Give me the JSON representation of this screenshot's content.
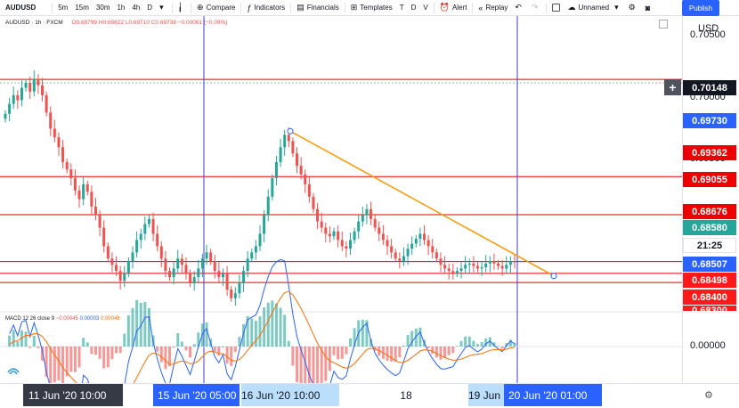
{
  "toolbar": {
    "symbol": "AUDUSD",
    "timeframes": [
      "5m",
      "15m",
      "30m",
      "1h",
      "4h",
      "D"
    ],
    "compare": "Compare",
    "indicators": "Indicators",
    "financials": "Financials",
    "templates": "Templates",
    "template_letters": [
      "T",
      "D",
      "V"
    ],
    "alert": "Alert",
    "replay": "Replay",
    "layout_name": "Unnamed",
    "publish": "Publish"
  },
  "legend": {
    "title": "AUDUSD · 1h · FXCM",
    "ohlc": "O0.69799 H0.69822 L0.69710 C0.69738 −0.00061 (−0.09%)"
  },
  "macd_legend": {
    "label": "MACD 12 26 close 9",
    "v1": "−0.00045",
    "v2": "0.00003",
    "v3": "0.00048"
  },
  "price_axis": {
    "currency": "USD",
    "ticks": [
      {
        "price": 0.705,
        "label": "0.70500"
      },
      {
        "price": 0.7,
        "label": "0.70000"
      },
      {
        "price": 0.695,
        "label": "0.69500"
      },
      {
        "price": 0.684,
        "label": "0.68400"
      }
    ],
    "macd_tick": "0.00000",
    "badges": [
      {
        "price": 0.70148,
        "label": "0.70148",
        "style": "dark"
      },
      {
        "price": 0.6973,
        "label": "0.69730",
        "style": "blue"
      },
      {
        "price": 0.69362,
        "label": "0.69362",
        "style": "red"
      },
      {
        "price": 0.69055,
        "label": "0.69055",
        "style": "red"
      },
      {
        "price": 0.68676,
        "label": "0.68676",
        "style": "red"
      },
      {
        "price": 0.6858,
        "label": "0.68580",
        "style": "teal"
      },
      {
        "price": 0.6854,
        "label": "21:25",
        "style": "outline"
      },
      {
        "price": 0.68507,
        "label": "0.68507",
        "style": "blue"
      },
      {
        "price": 0.68498,
        "label": "0.68498",
        "style": "red2"
      },
      {
        "price": 0.684,
        "label": "0.68400",
        "style": "red2"
      }
    ],
    "partial_bottom": "0.68300"
  },
  "chart_data": {
    "type": "candlestick",
    "symbol": "AUDUSD",
    "interval": "1h",
    "horizontal_levels": [
      0.70148,
      0.69362,
      0.69055,
      0.68676,
      0.6858,
      0.68507
    ],
    "trendline": {
      "from": 0.6973,
      "to": 0.6856
    },
    "vertical_lines": [
      "15 Jun '20 05:00",
      "20 Jun '20 01:00"
    ],
    "price_range": [
      0.6827,
      0.7066
    ],
    "closes": [
      0.6987,
      0.6995,
      0.7002,
      0.6998,
      0.7008,
      0.7012,
      0.7005,
      0.7015,
      0.701,
      0.7002,
      0.6988,
      0.6975,
      0.6968,
      0.696,
      0.6948,
      0.6942,
      0.6935,
      0.6925,
      0.6918,
      0.693,
      0.6924,
      0.6912,
      0.6905,
      0.6895,
      0.688,
      0.687,
      0.6865,
      0.686,
      0.6852,
      0.6858,
      0.6868,
      0.6875,
      0.6885,
      0.689,
      0.6898,
      0.6902,
      0.689,
      0.688,
      0.687,
      0.686,
      0.6855,
      0.6862,
      0.687,
      0.6865,
      0.6858,
      0.685,
      0.6855,
      0.6862,
      0.687,
      0.6875,
      0.6868,
      0.686,
      0.6855,
      0.6858,
      0.6845,
      0.6838,
      0.6842,
      0.685,
      0.686,
      0.687,
      0.6875,
      0.688,
      0.689,
      0.6905,
      0.692,
      0.6935,
      0.6948,
      0.696,
      0.697,
      0.6965,
      0.6955,
      0.6945,
      0.6938,
      0.693,
      0.692,
      0.691,
      0.69,
      0.6895,
      0.689,
      0.6888,
      0.6892,
      0.6885,
      0.688,
      0.6878,
      0.6885,
      0.6892,
      0.69,
      0.6905,
      0.691,
      0.6902,
      0.6895,
      0.689,
      0.6885,
      0.688,
      0.6875,
      0.687,
      0.6868,
      0.6872,
      0.6878,
      0.6882,
      0.6886,
      0.689,
      0.6885,
      0.688,
      0.6875,
      0.687,
      0.6865,
      0.6862,
      0.686,
      0.6858,
      0.686,
      0.6862,
      0.6865,
      0.6866,
      0.6864,
      0.6862,
      0.6863,
      0.6866,
      0.6868,
      0.6866,
      0.6864,
      0.6862,
      0.6865,
      0.6868,
      0.6867
    ]
  },
  "time_axis": {
    "labels": [
      {
        "text": "11 Jun '20   10:00",
        "style": "dark"
      },
      {
        "text": "15 Jun '20  05:00",
        "style": "blue"
      },
      {
        "text": "16 Jun '20   10:00",
        "style": "light"
      },
      {
        "text": "18",
        "style": "plain"
      },
      {
        "text": "19 Jun '20",
        "style": "light"
      },
      {
        "text": "20 Jun '20   01:00",
        "style": "blue"
      }
    ]
  },
  "colors": {
    "up": "#26a69a",
    "down": "#ef5350",
    "level": "#e50000",
    "trend": "#ff9800",
    "vline": "#3d3dd6",
    "macd": "#2962ff",
    "signal": "#ff6d00"
  }
}
